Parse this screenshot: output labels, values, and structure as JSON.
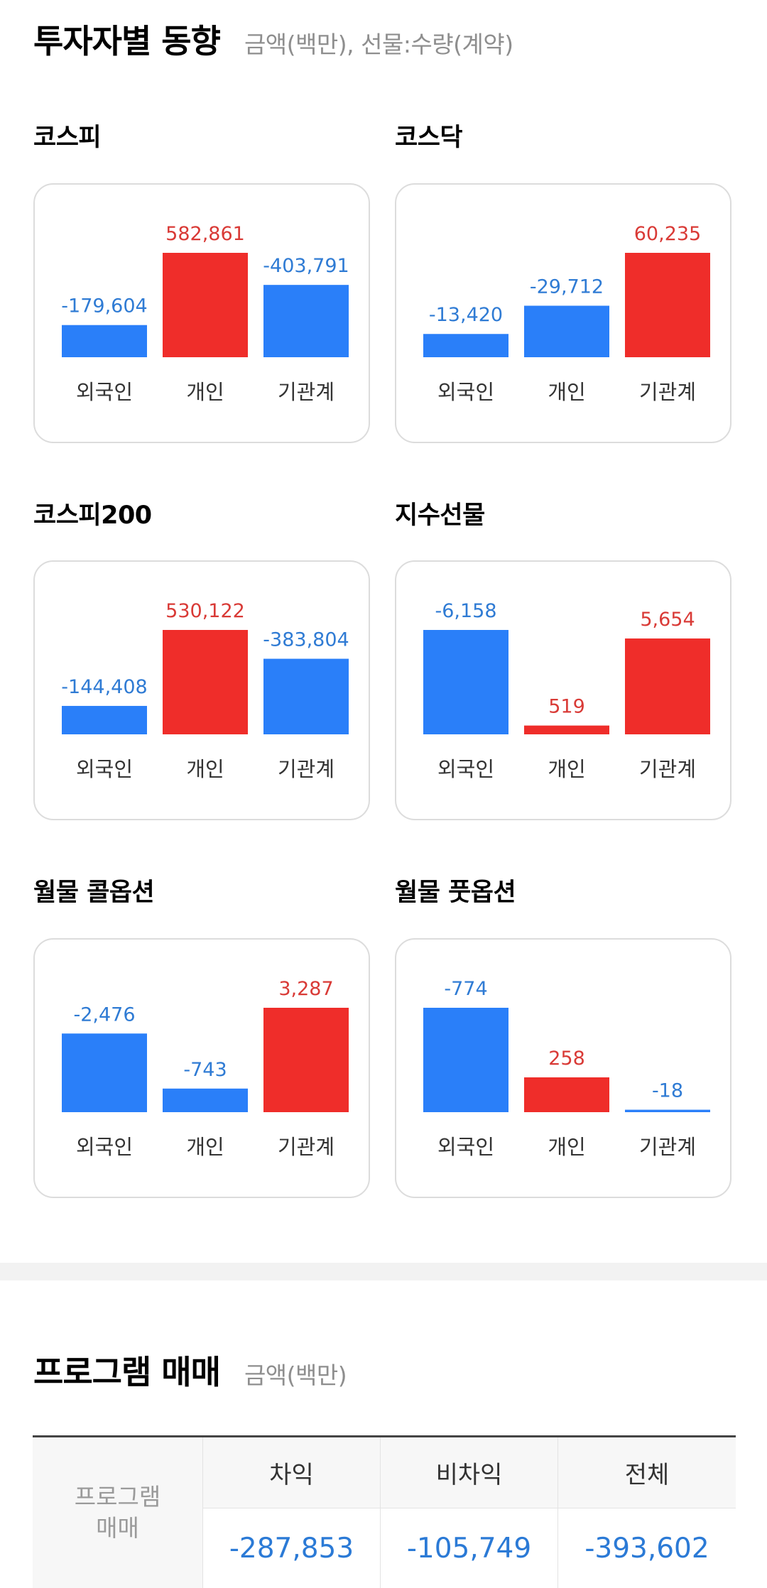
{
  "investor_section": {
    "title": "투자자별 동향",
    "subtitle": "금액(백만), 선물:수량(계약)"
  },
  "colors": {
    "positive": "#ef2d2a",
    "negative": "#2a7ff9",
    "positive_text": "#d93a36",
    "negative_text": "#2f7bd4"
  },
  "charts": [
    {
      "label": "코스피",
      "values": [
        -179604,
        582861,
        -403791
      ],
      "value_labels": [
        "-179,604",
        "582,861",
        "-403,791"
      ],
      "categories": [
        "외국인",
        "개인",
        "기관계"
      ]
    },
    {
      "label": "코스닥",
      "values": [
        -13420,
        -29712,
        60235
      ],
      "value_labels": [
        "-13,420",
        "-29,712",
        "60,235"
      ],
      "categories": [
        "외국인",
        "개인",
        "기관계"
      ]
    },
    {
      "label": "코스피200",
      "values": [
        -144408,
        530122,
        -383804
      ],
      "value_labels": [
        "-144,408",
        "530,122",
        "-383,804"
      ],
      "categories": [
        "외국인",
        "개인",
        "기관계"
      ]
    },
    {
      "label": "지수선물",
      "values": [
        -6158,
        519,
        5654
      ],
      "value_labels": [
        "-6,158",
        "519",
        "5,654"
      ],
      "categories": [
        "외국인",
        "개인",
        "기관계"
      ]
    },
    {
      "label": "월물 콜옵션",
      "values": [
        -2476,
        -743,
        3287
      ],
      "value_labels": [
        "-2,476",
        "-743",
        "3,287"
      ],
      "categories": [
        "외국인",
        "개인",
        "기관계"
      ]
    },
    {
      "label": "월물 풋옵션",
      "values": [
        -774,
        258,
        -18
      ],
      "value_labels": [
        "-774",
        "258",
        "-18"
      ],
      "categories": [
        "외국인",
        "개인",
        "기관계"
      ]
    }
  ],
  "program_section": {
    "title": "프로그램 매매",
    "subtitle": "금액(백만)",
    "row_header_line1": "프로그램",
    "row_header_line2": "매매",
    "columns": [
      {
        "header": "차익",
        "value": "-287,853"
      },
      {
        "header": "비차익",
        "value": "-105,749"
      },
      {
        "header": "전체",
        "value": "-393,602"
      }
    ]
  }
}
